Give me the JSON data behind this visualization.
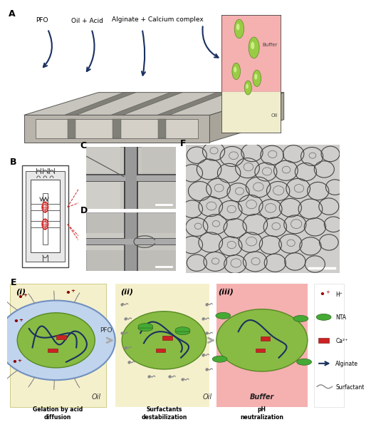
{
  "fig_width": 4.74,
  "fig_height": 5.8,
  "bg_color": "#ffffff",
  "arrow_color": "#1a3060",
  "chip_color_top": "#c8c5be",
  "chip_color_side": "#a8a49c",
  "chip_color_front": "#b0ac a4",
  "chip_color_groove": "#888480",
  "chip_edge": "#666666",
  "inset_buffer_color": "#f5b0b0",
  "inset_oil_color": "#f0edcc",
  "inset_buffer_label": "Buffer",
  "inset_oil_label": "Oil",
  "chip_label_PFO": "PFO",
  "chip_label_oil_acid": "Oil + Acid",
  "chip_label_alginate": "Alginate + Calcium complex",
  "panel_E_bg": "#f5f0cc",
  "panel_E_iii_bg": "#f5b0b0",
  "step_i_label": "(i)",
  "step_ii_label": "(ii)",
  "step_iii_label": "(iii)",
  "step_i_caption": "Gelation by acid\ndiffusion",
  "step_ii_caption": "Surfactants\ndestabilization",
  "step_iii_caption": "pH\nneutralization",
  "pfo_label": "PFO",
  "oil_label_i": "Oil",
  "oil_label_ii": "Oil",
  "buffer_label": "Buffer",
  "legend_items": [
    {
      "label": "H⁺",
      "color": "#990000",
      "marker": "cross"
    },
    {
      "label": "NTA",
      "color": "#44aa33",
      "marker": "teardrop"
    },
    {
      "label": "Ca²⁺",
      "color": "#cc2222",
      "marker": "diamond"
    },
    {
      "label": "Alginate",
      "color": "#1a3060",
      "marker": "check"
    },
    {
      "label": "Surfactant",
      "color": "#888888",
      "marker": "wave"
    }
  ],
  "cell_shell_color": "#8ab0d8",
  "cell_inner_color": "#88bb44",
  "alginate_color": "#1a3060",
  "nta_color": "#44aa33",
  "hplus_color": "#880000",
  "ca_color": "#cc2222",
  "surfactant_color": "#888888",
  "bead_bg": "#d4d0cc",
  "micro_bg": "#c0bebb"
}
